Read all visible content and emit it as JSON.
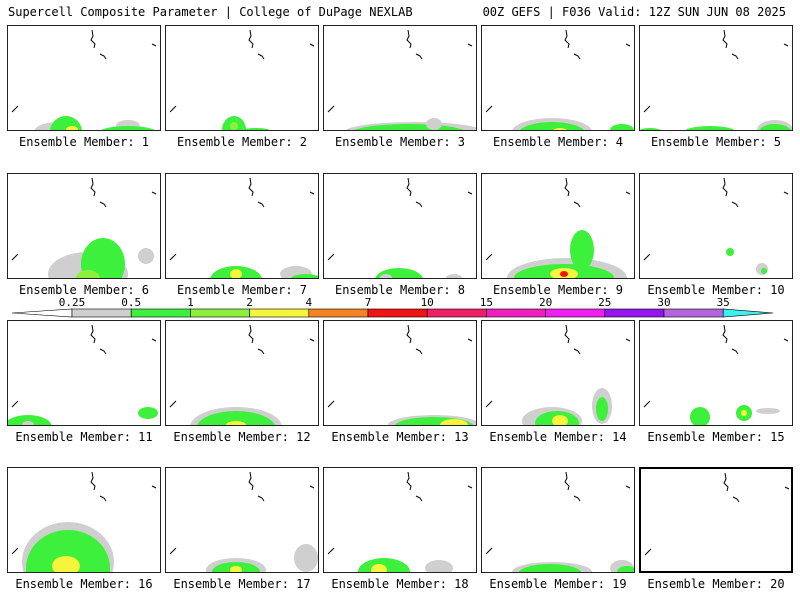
{
  "header": {
    "title": "Supercell Composite Parameter | College of DuPage NEXLAB",
    "run_info": "00Z GEFS | F036 Valid: 12Z SUN JUN 08 2025"
  },
  "colorbar": {
    "ticks": [
      "0.25",
      "0.5",
      "1",
      "2",
      "4",
      "7",
      "10",
      "15",
      "20",
      "25",
      "30",
      "35"
    ],
    "colors": [
      "#ffffff",
      "#cfcfcf",
      "#3cf03c",
      "#8cf03c",
      "#f5f53c",
      "#f5821e",
      "#f01414",
      "#f01e64",
      "#f01ebe",
      "#f01ef0",
      "#9614f0",
      "#b464dc",
      "#3cf0f0"
    ]
  },
  "members": [
    {
      "label": "Ensemble Member: 1"
    },
    {
      "label": "Ensemble Member: 2"
    },
    {
      "label": "Ensemble Member: 3"
    },
    {
      "label": "Ensemble Member: 4"
    },
    {
      "label": "Ensemble Member: 5"
    },
    {
      "label": "Ensemble Member: 6"
    },
    {
      "label": "Ensemble Member: 7"
    },
    {
      "label": "Ensemble Member: 8"
    },
    {
      "label": "Ensemble Member: 9"
    },
    {
      "label": "Ensemble Member: 10"
    },
    {
      "label": "Ensemble Member: 11"
    },
    {
      "label": "Ensemble Member: 12"
    },
    {
      "label": "Ensemble Member: 13"
    },
    {
      "label": "Ensemble Member: 14"
    },
    {
      "label": "Ensemble Member: 15"
    },
    {
      "label": "Ensemble Member: 16"
    },
    {
      "label": "Ensemble Member: 17"
    },
    {
      "label": "Ensemble Member: 18"
    },
    {
      "label": "Ensemble Member: 19"
    },
    {
      "label": "Ensemble Member: 20"
    }
  ],
  "selected_member": 20
}
